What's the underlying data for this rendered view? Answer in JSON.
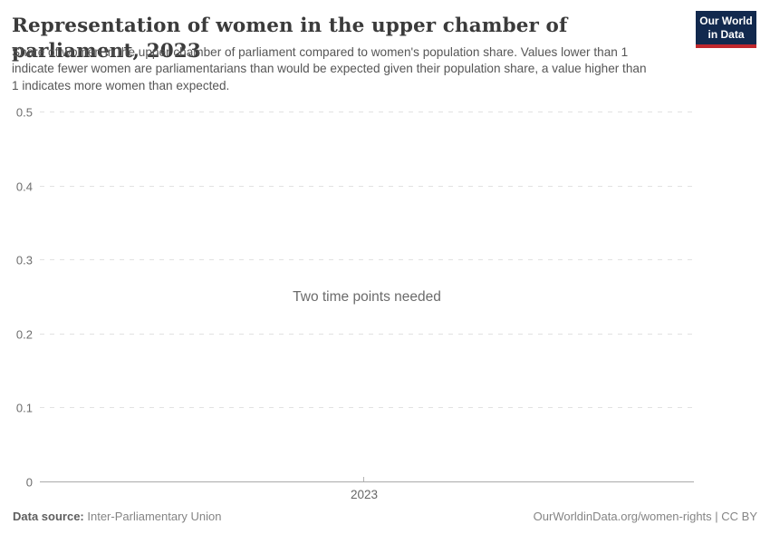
{
  "header": {
    "title": "Representation of women in the upper chamber of parliament, 2023",
    "subtitle": "Share of women in the upper chamber of parliament compared to women's population share. Values lower than 1 indicate fewer women are parliamentarians than would be expected given their population share, a value higher than 1 indicates more women than expected.",
    "logo_line1": "Our World",
    "logo_line2": "in Data",
    "logo_bg_color": "#12294e",
    "logo_accent_color": "#c0272d"
  },
  "chart_data": {
    "type": "line",
    "title": "Representation of women in the upper chamber of parliament, 2023",
    "series": [],
    "message": "Two time points needed",
    "x_tick_label": "2023",
    "xlabel": "",
    "ylabel": "",
    "ylim": [
      0,
      0.5
    ],
    "yticks": [
      {
        "value": 0,
        "label": "0"
      },
      {
        "value": 0.1,
        "label": "0.1"
      },
      {
        "value": 0.2,
        "label": "0.2"
      },
      {
        "value": 0.3,
        "label": "0.3"
      },
      {
        "value": 0.4,
        "label": "0.4"
      },
      {
        "value": 0.5,
        "label": "0.5"
      }
    ],
    "grid": true,
    "legend_position": "none"
  },
  "footer": {
    "source_label": "Data source:",
    "source_value": "Inter-Parliamentary Union",
    "right_text": "OurWorldinData.org/women-rights | CC BY"
  }
}
